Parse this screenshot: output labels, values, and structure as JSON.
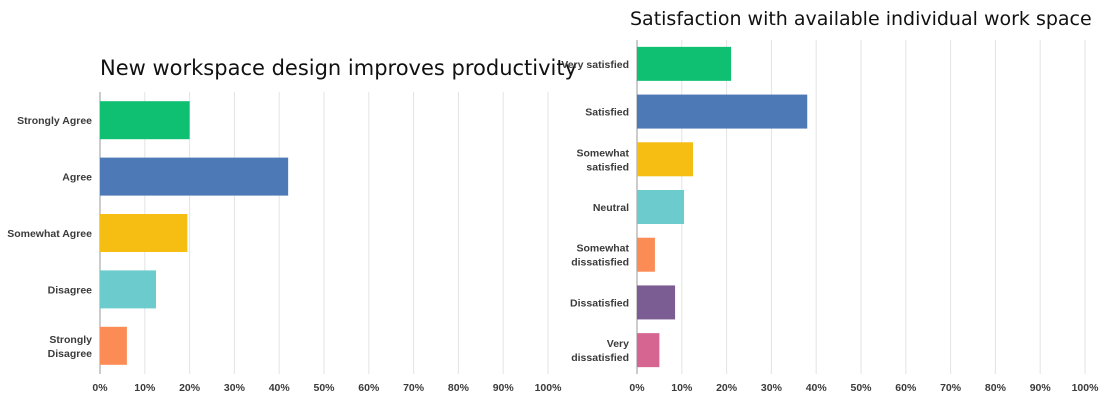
{
  "chart_data": [
    {
      "type": "bar",
      "orientation": "horizontal",
      "title": "New workspace design improves productivity",
      "categories": [
        "Strongly Agree",
        "Agree",
        "Somewhat Agree",
        "Disagree",
        "Strongly Disagree"
      ],
      "values": [
        20,
        42,
        19.5,
        12.5,
        6
      ],
      "colors": [
        "#0fbf72",
        "#4e79b7",
        "#f6bd12",
        "#6ccbcc",
        "#fb8c55"
      ],
      "xlim": [
        0,
        100
      ],
      "xticks": [
        "0%",
        "10%",
        "20%",
        "30%",
        "40%",
        "50%",
        "60%",
        "70%",
        "80%",
        "90%",
        "100%"
      ],
      "grid": true
    },
    {
      "type": "bar",
      "orientation": "horizontal",
      "title": "Satisfaction with available individual work space",
      "categories": [
        "Very satisfied",
        "Satisfied",
        "Somewhat satisfied",
        "Neutral",
        "Somewhat dissatisfied",
        "Dissatisfied",
        "Very dissatisfied"
      ],
      "values": [
        21,
        38,
        12.5,
        10.5,
        4,
        8.5,
        5
      ],
      "colors": [
        "#0fbf72",
        "#4e79b7",
        "#f6bd12",
        "#6ccbcc",
        "#fb8c55",
        "#7b5c93",
        "#d76591"
      ],
      "xlim": [
        0,
        100
      ],
      "xticks": [
        "0%",
        "10%",
        "20%",
        "30%",
        "40%",
        "50%",
        "60%",
        "70%",
        "80%",
        "90%",
        "100%"
      ],
      "grid": true
    }
  ]
}
